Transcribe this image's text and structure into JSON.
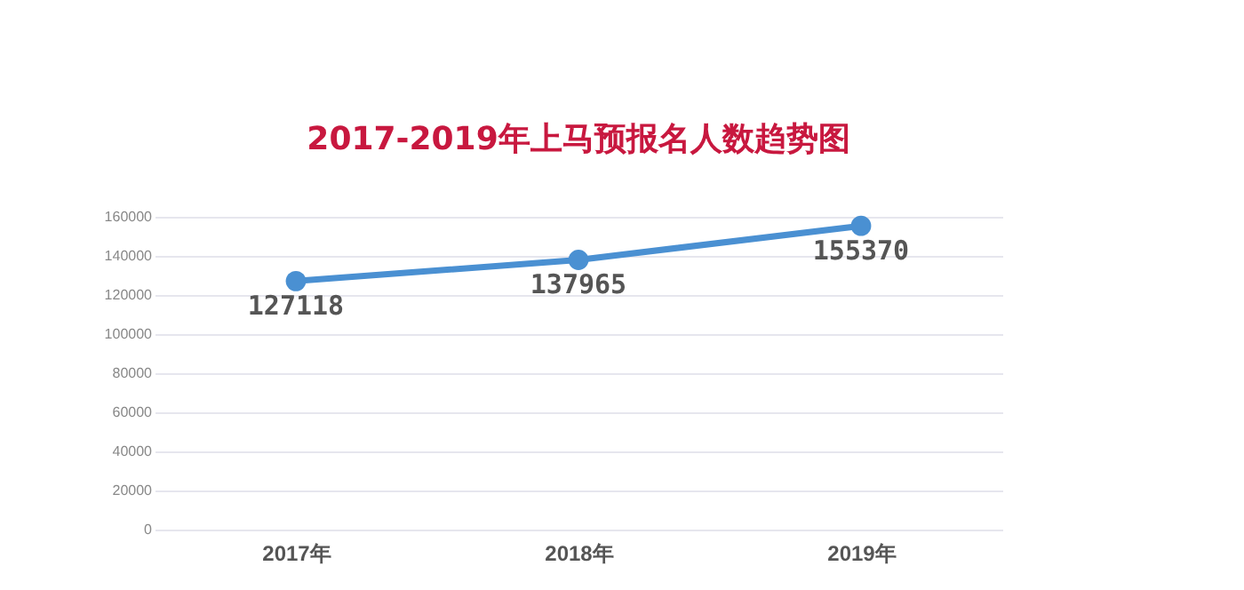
{
  "chart_data": {
    "type": "line",
    "title": "2017-2019年上马预报名人数趋势图",
    "categories": [
      "2017年",
      "2018年",
      "2019年"
    ],
    "series": [
      {
        "color": "#4a90d2",
        "values": [
          127118,
          137965,
          155370
        ]
      }
    ],
    "ylim": [
      0,
      160000
    ],
    "yticks": [
      0,
      20000,
      40000,
      60000,
      80000,
      100000,
      120000,
      140000,
      160000
    ],
    "grid": "y",
    "marker": "circle",
    "line_style": "solid",
    "data_labels": true,
    "legend": false
  }
}
